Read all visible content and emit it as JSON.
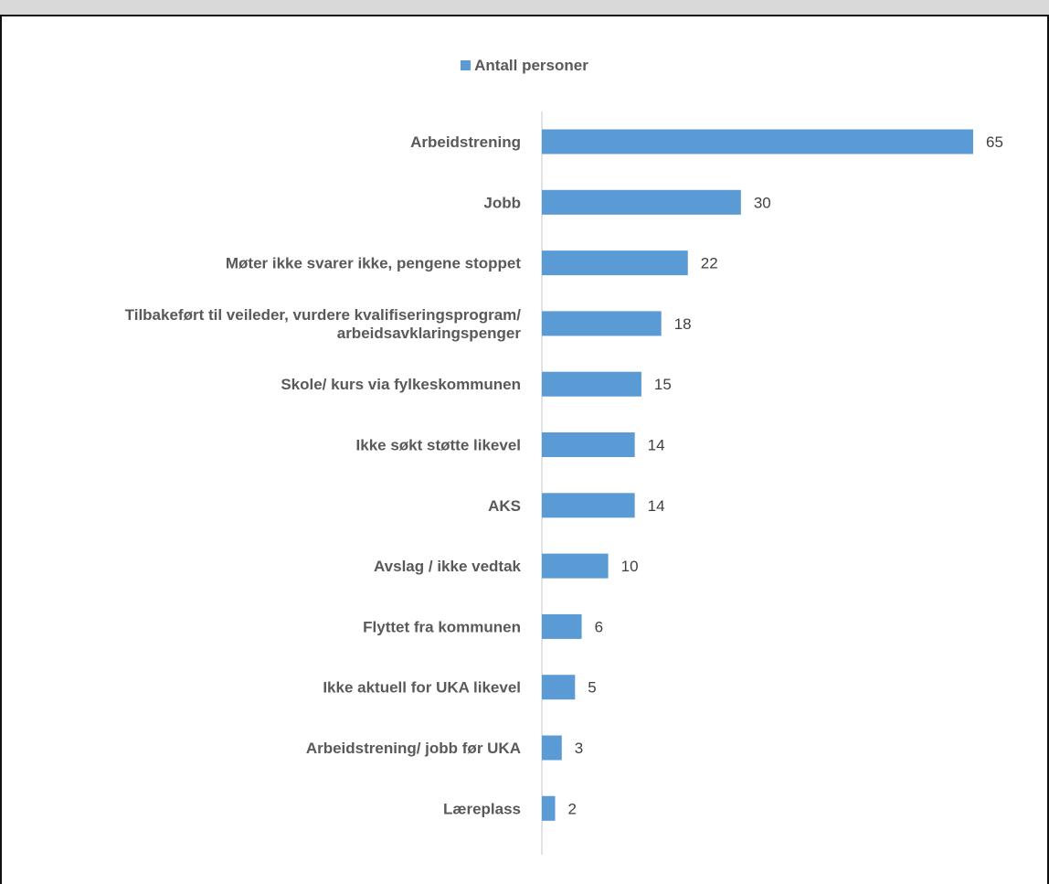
{
  "chart_data": {
    "type": "bar",
    "orientation": "horizontal",
    "title": "",
    "xlabel": "",
    "ylabel": "",
    "legend": {
      "position": "top",
      "entries": [
        "Antall personer"
      ]
    },
    "grid": false,
    "xlim": [
      0,
      65
    ],
    "colors": {
      "bar": "#5b9bd5",
      "axis": "#d9d9d9"
    },
    "categories": [
      [
        "Arbeidstrening"
      ],
      [
        "Jobb"
      ],
      [
        "Møter ikke svarer ikke, pengene stoppet"
      ],
      [
        "Tilbakeført til veileder, vurdere kvalifiseringsprogram/",
        "arbeidsavklaringspenger"
      ],
      [
        "Skole/ kurs via fylkeskommunen"
      ],
      [
        "Ikke søkt støtte likevel"
      ],
      [
        "AKS"
      ],
      [
        "Avslag / ikke vedtak"
      ],
      [
        "Flyttet fra kommunen"
      ],
      [
        "Ikke aktuell for UKA likevel"
      ],
      [
        "Arbeidstrening/ jobb før UKA"
      ],
      [
        "Læreplass"
      ]
    ],
    "series": [
      {
        "name": "Antall personer",
        "values": [
          65,
          30,
          22,
          18,
          15,
          14,
          14,
          10,
          6,
          5,
          3,
          2
        ]
      }
    ]
  }
}
